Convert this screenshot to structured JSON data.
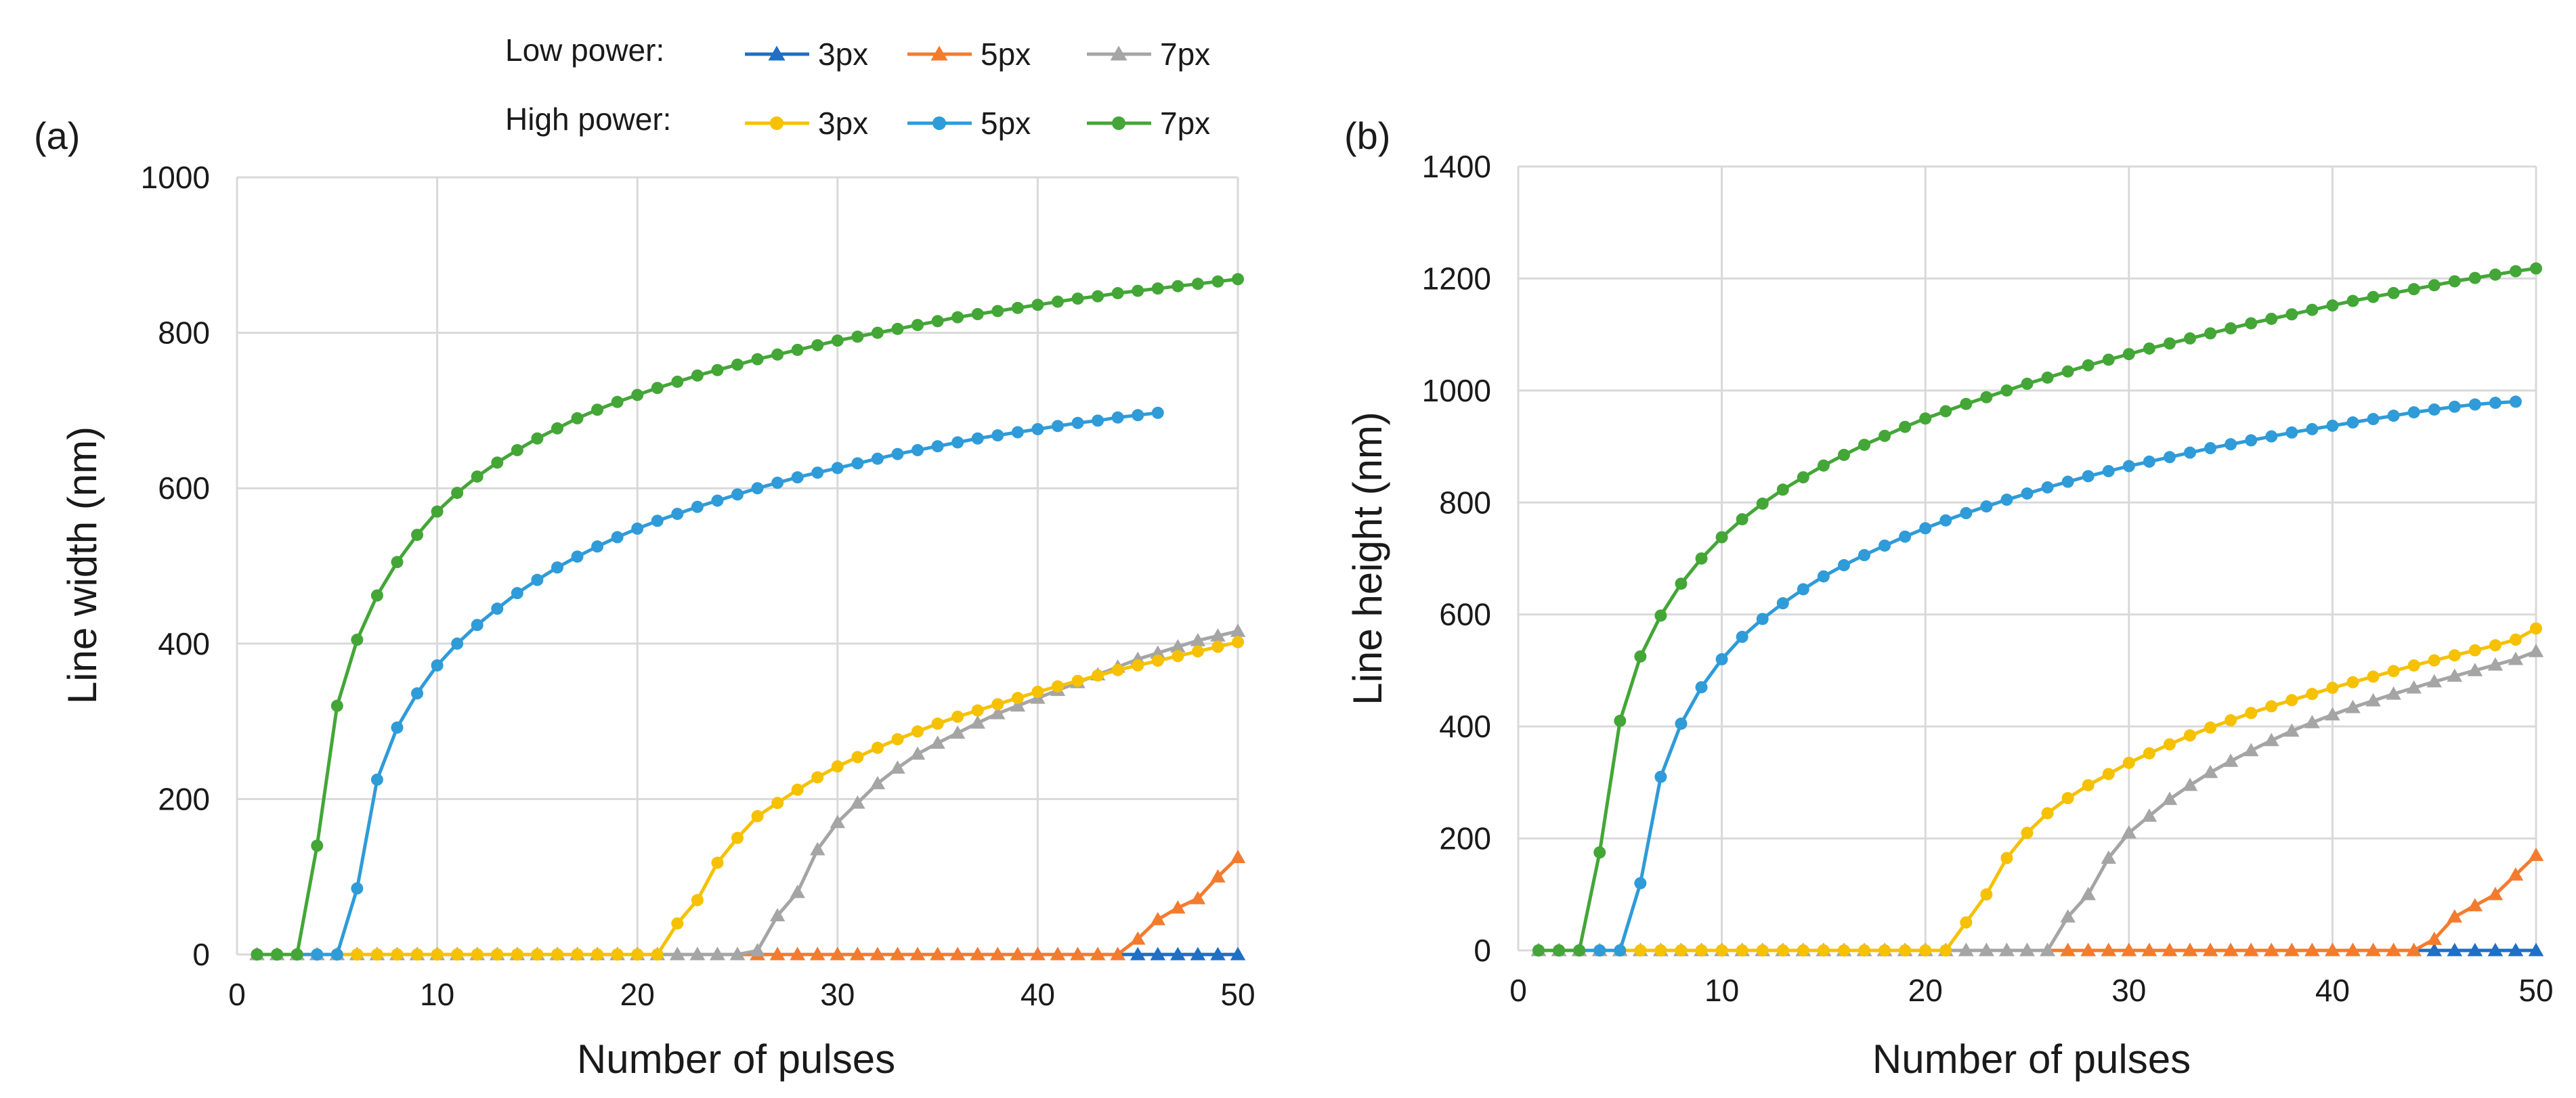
{
  "legend": {
    "low_label": "Low power:",
    "high_label": "High power:",
    "entries": [
      {
        "group": "low",
        "name": "3px",
        "color": "#1f6fc4",
        "marker": "triangle"
      },
      {
        "group": "low",
        "name": "5px",
        "color": "#f47b2e",
        "marker": "triangle"
      },
      {
        "group": "low",
        "name": "7px",
        "color": "#a5a5a5",
        "marker": "triangle"
      },
      {
        "group": "high",
        "name": "3px",
        "color": "#f5c100",
        "marker": "circle"
      },
      {
        "group": "high",
        "name": "5px",
        "color": "#2f9bd8",
        "marker": "circle"
      },
      {
        "group": "high",
        "name": "7px",
        "color": "#43a637",
        "marker": "circle"
      }
    ]
  },
  "chart_data": [
    {
      "panel": "(a)",
      "type": "line",
      "xlabel": "Number of pulses",
      "ylabel": "Line width (nm)",
      "xlim": [
        0,
        50
      ],
      "ylim": [
        0,
        1000
      ],
      "xticks": [
        "0",
        "10",
        "20",
        "30",
        "40",
        "50"
      ],
      "yticks": [
        "0",
        "200",
        "400",
        "600",
        "800",
        "1000"
      ],
      "grid": true,
      "series": [
        {
          "name": "Low power 3px",
          "color": "#1f6fc4",
          "marker": "triangle",
          "x_start": 1,
          "values": [
            0,
            0,
            0,
            0,
            0,
            0,
            0,
            0,
            0,
            0,
            0,
            0,
            0,
            0,
            0,
            0,
            0,
            0,
            0,
            0,
            0,
            0,
            0,
            0,
            0,
            0,
            0,
            0,
            0,
            0,
            0,
            0,
            0,
            0,
            0,
            0,
            0,
            0,
            0,
            0,
            0,
            0,
            0,
            0,
            0,
            0,
            0,
            0,
            0,
            0
          ]
        },
        {
          "name": "Low power 5px",
          "color": "#f47b2e",
          "marker": "triangle",
          "x_start": 1,
          "values": [
            0,
            0,
            0,
            0,
            0,
            0,
            0,
            0,
            0,
            0,
            0,
            0,
            0,
            0,
            0,
            0,
            0,
            0,
            0,
            0,
            0,
            0,
            0,
            0,
            0,
            0,
            0,
            0,
            0,
            0,
            0,
            0,
            0,
            0,
            0,
            0,
            0,
            0,
            0,
            0,
            0,
            0,
            0,
            0,
            20,
            45,
            60,
            72,
            100,
            125
          ]
        },
        {
          "name": "Low power 7px",
          "color": "#a5a5a5",
          "marker": "triangle",
          "x_start": 1,
          "values": [
            0,
            0,
            0,
            0,
            0,
            0,
            0,
            0,
            0,
            0,
            0,
            0,
            0,
            0,
            0,
            0,
            0,
            0,
            0,
            0,
            0,
            0,
            0,
            0,
            0,
            5,
            50,
            80,
            135,
            170,
            195,
            220,
            240,
            258,
            272,
            285,
            298,
            310,
            320,
            330,
            340,
            350,
            360,
            370,
            380,
            388,
            396,
            404,
            410,
            416
          ]
        },
        {
          "name": "High power 3px",
          "color": "#f5c100",
          "marker": "circle",
          "x_start": 1,
          "values": [
            0,
            0,
            0,
            0,
            0,
            0,
            0,
            0,
            0,
            0,
            0,
            0,
            0,
            0,
            0,
            0,
            0,
            0,
            0,
            0,
            0,
            40,
            70,
            118,
            150,
            178,
            195,
            212,
            228,
            242,
            254,
            266,
            277,
            287,
            297,
            306,
            314,
            322,
            330,
            338,
            345,
            352,
            359,
            366,
            372,
            378,
            384,
            390,
            396,
            402
          ]
        },
        {
          "name": "High power 5px",
          "color": "#2f9bd8",
          "marker": "circle",
          "x_start": 1,
          "values": [
            0,
            0,
            0,
            0,
            0,
            85,
            225,
            292,
            336,
            372,
            400,
            424,
            445,
            465,
            482,
            498,
            512,
            525,
            537,
            548,
            558,
            567,
            576,
            584,
            592,
            600,
            607,
            614,
            620,
            626,
            632,
            638,
            644,
            649,
            654,
            659,
            664,
            668,
            672,
            676,
            680,
            684,
            687,
            691,
            694,
            697
          ]
        },
        {
          "name": "High power 7px",
          "color": "#43a637",
          "marker": "circle",
          "x_start": 1,
          "values": [
            0,
            0,
            0,
            140,
            320,
            405,
            462,
            505,
            540,
            570,
            594,
            615,
            633,
            649,
            664,
            677,
            690,
            701,
            711,
            720,
            729,
            737,
            745,
            752,
            759,
            766,
            772,
            778,
            784,
            790,
            795,
            800,
            805,
            810,
            815,
            820,
            824,
            828,
            832,
            836,
            840,
            844,
            847,
            851,
            854,
            857,
            860,
            863,
            866,
            869
          ]
        }
      ]
    },
    {
      "panel": "(b)",
      "type": "line",
      "xlabel": "Number of pulses",
      "ylabel": "Line height (nm)",
      "xlim": [
        0,
        50
      ],
      "ylim": [
        0,
        1400
      ],
      "xticks": [
        "0",
        "10",
        "20",
        "30",
        "40",
        "50"
      ],
      "yticks": [
        "0",
        "200",
        "400",
        "600",
        "800",
        "1000",
        "1200",
        "1400"
      ],
      "grid": true,
      "series": [
        {
          "name": "Low power 3px",
          "color": "#1f6fc4",
          "marker": "triangle",
          "x_start": 1,
          "values": [
            0,
            0,
            0,
            0,
            0,
            0,
            0,
            0,
            0,
            0,
            0,
            0,
            0,
            0,
            0,
            0,
            0,
            0,
            0,
            0,
            0,
            0,
            0,
            0,
            0,
            0,
            0,
            0,
            0,
            0,
            0,
            0,
            0,
            0,
            0,
            0,
            0,
            0,
            0,
            0,
            0,
            0,
            0,
            0,
            0,
            0,
            0,
            0,
            0,
            0
          ]
        },
        {
          "name": "Low power 5px",
          "color": "#f47b2e",
          "marker": "triangle",
          "x_start": 1,
          "values": [
            0,
            0,
            0,
            0,
            0,
            0,
            0,
            0,
            0,
            0,
            0,
            0,
            0,
            0,
            0,
            0,
            0,
            0,
            0,
            0,
            0,
            0,
            0,
            0,
            0,
            0,
            0,
            0,
            0,
            0,
            0,
            0,
            0,
            0,
            0,
            0,
            0,
            0,
            0,
            0,
            0,
            0,
            0,
            0,
            20,
            60,
            80,
            100,
            135,
            170
          ]
        },
        {
          "name": "Low power 7px",
          "color": "#a5a5a5",
          "marker": "triangle",
          "x_start": 1,
          "values": [
            0,
            0,
            0,
            0,
            0,
            0,
            0,
            0,
            0,
            0,
            0,
            0,
            0,
            0,
            0,
            0,
            0,
            0,
            0,
            0,
            0,
            0,
            0,
            0,
            0,
            0,
            60,
            100,
            165,
            210,
            240,
            270,
            295,
            318,
            338,
            357,
            375,
            392,
            407,
            421,
            434,
            446,
            458,
            469,
            480,
            490,
            500,
            510,
            520,
            534
          ]
        },
        {
          "name": "High power 3px",
          "color": "#f5c100",
          "marker": "circle",
          "x_start": 1,
          "values": [
            0,
            0,
            0,
            0,
            0,
            0,
            0,
            0,
            0,
            0,
            0,
            0,
            0,
            0,
            0,
            0,
            0,
            0,
            0,
            0,
            0,
            50,
            100,
            165,
            210,
            245,
            272,
            295,
            315,
            335,
            352,
            368,
            384,
            398,
            411,
            424,
            436,
            447,
            458,
            469,
            479,
            489,
            499,
            509,
            518,
            527,
            536,
            545,
            555,
            575
          ]
        },
        {
          "name": "High power 5px",
          "color": "#2f9bd8",
          "marker": "circle",
          "x_start": 1,
          "values": [
            0,
            0,
            0,
            0,
            0,
            120,
            310,
            405,
            470,
            520,
            560,
            592,
            620,
            645,
            668,
            688,
            706,
            723,
            739,
            754,
            768,
            781,
            793,
            805,
            816,
            827,
            837,
            847,
            856,
            865,
            873,
            881,
            889,
            897,
            904,
            911,
            918,
            925,
            931,
            937,
            943,
            949,
            955,
            961,
            966,
            971,
            975,
            978,
            980
          ]
        },
        {
          "name": "High power 7px",
          "color": "#43a637",
          "marker": "circle",
          "x_start": 1,
          "values": [
            0,
            0,
            0,
            175,
            410,
            525,
            598,
            655,
            700,
            738,
            770,
            798,
            823,
            845,
            866,
            885,
            903,
            919,
            935,
            950,
            963,
            976,
            988,
            1000,
            1012,
            1023,
            1034,
            1045,
            1055,
            1065,
            1075,
            1084,
            1093,
            1102,
            1111,
            1120,
            1128,
            1136,
            1144,
            1152,
            1160,
            1167,
            1174,
            1181,
            1188,
            1195,
            1201,
            1207,
            1213,
            1218
          ]
        }
      ]
    }
  ]
}
